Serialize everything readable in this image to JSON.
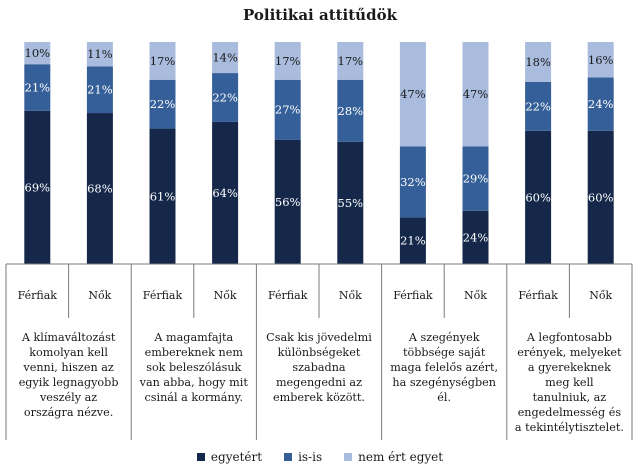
{
  "chart_data": {
    "type": "bar",
    "stacked": true,
    "title": "Politikai attitűdök",
    "ylim": [
      0,
      100
    ],
    "grid": false,
    "legend_position": "bottom",
    "legend": [
      "egyetért",
      "is-is",
      "nem ért egyet"
    ],
    "colors": [
      "#15284a",
      "#355f98",
      "#a9bcdd"
    ],
    "groups": [
      {
        "statement": "A klímaváltozást komolyan kell venni, hiszen az egyik legnagyobb veszély az országra nézve.",
        "bars": [
          {
            "label": "Férfiak",
            "values": [
              69,
              21,
              10
            ],
            "texts": [
              "69%",
              "21%",
              "10%"
            ]
          },
          {
            "label": "Nők",
            "values": [
              68,
              21,
              11
            ],
            "texts": [
              "68%",
              "21%",
              "11%"
            ]
          }
        ]
      },
      {
        "statement": "A magamfajta embereknek nem sok beleszólásuk van abba, hogy mit csinál a kormány.",
        "bars": [
          {
            "label": "Férfiak",
            "values": [
              61,
              22,
              17
            ],
            "texts": [
              "61%",
              "22%",
              "17%"
            ]
          },
          {
            "label": "Nők",
            "values": [
              64,
              22,
              14
            ],
            "texts": [
              "64%",
              "22%",
              "14%"
            ]
          }
        ]
      },
      {
        "statement": "Csak kis jövedelmi különbségeket szabadna megengedni az emberek között.",
        "bars": [
          {
            "label": "Férfiak",
            "values": [
              56,
              27,
              17
            ],
            "texts": [
              "56%",
              "27%",
              "17%"
            ]
          },
          {
            "label": "Nők",
            "values": [
              55,
              28,
              17
            ],
            "texts": [
              "55%",
              "28%",
              "17%"
            ]
          }
        ]
      },
      {
        "statement": "A szegények többsége saját maga felelős azért, ha szegénységben él.",
        "bars": [
          {
            "label": "Férfiak",
            "values": [
              21,
              32,
              47
            ],
            "texts": [
              "21%",
              "32%",
              "47%"
            ]
          },
          {
            "label": "Nők",
            "values": [
              24,
              29,
              47
            ],
            "texts": [
              "24%",
              "29%",
              "47%"
            ]
          }
        ]
      },
      {
        "statement": "A legfontosabb erények, melyeket a gyerekeknek meg kell tanulniuk, az engedelmesség és a tekintélytisztelet.",
        "bars": [
          {
            "label": "Férfiak",
            "values": [
              60,
              22,
              18
            ],
            "texts": [
              "60%",
              "22%",
              "18%"
            ]
          },
          {
            "label": "Nők",
            "values": [
              60,
              24,
              16
            ],
            "texts": [
              "60%",
              "24%",
              "16%"
            ]
          }
        ]
      }
    ]
  }
}
